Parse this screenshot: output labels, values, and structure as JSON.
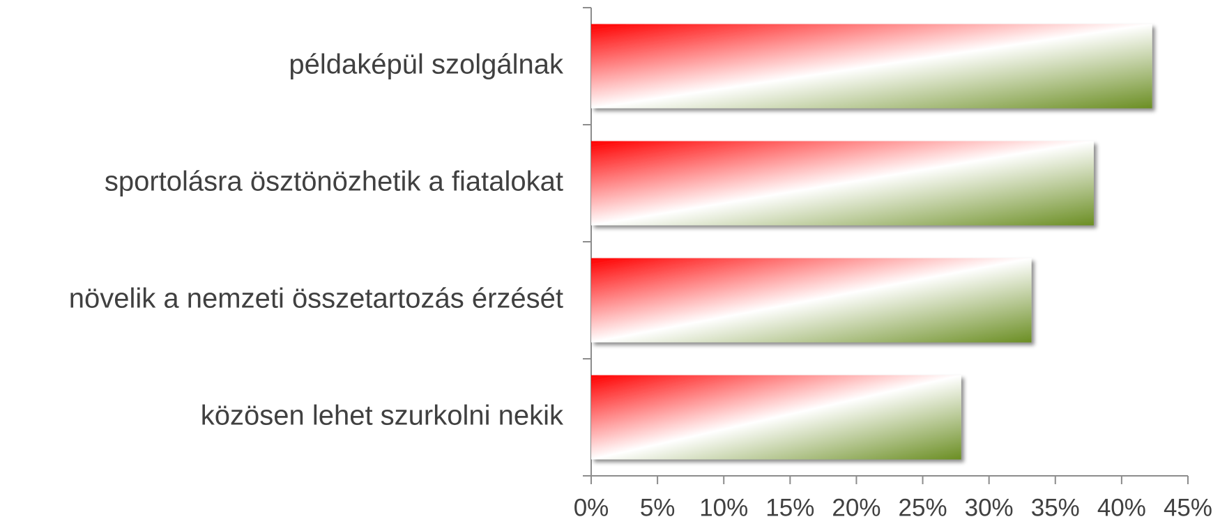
{
  "chart_data": {
    "type": "barh",
    "categories": [
      "példaképül szolgálnak",
      "sportolásra ösztönözhetik a fiatalokat",
      "növelik a nemzeti összetartozás érzését",
      "közösen lehet szurkolni nekik"
    ],
    "values": [
      42.3,
      37.9,
      33.2,
      27.9
    ],
    "gradient": [
      "#ff0000",
      "#ffffff",
      "#6b8e23"
    ],
    "xlim": [
      0,
      45
    ],
    "xticks": [
      {
        "value": 0,
        "label": "0%"
      },
      {
        "value": 5,
        "label": "5%"
      },
      {
        "value": 10,
        "label": "10%"
      },
      {
        "value": 15,
        "label": "15%"
      },
      {
        "value": 20,
        "label": "20%"
      },
      {
        "value": 25,
        "label": "25%"
      },
      {
        "value": 30,
        "label": "30%"
      },
      {
        "value": 35,
        "label": "35%"
      },
      {
        "value": 40,
        "label": "40%"
      },
      {
        "value": 45,
        "label": "45%"
      }
    ],
    "grid": false
  }
}
